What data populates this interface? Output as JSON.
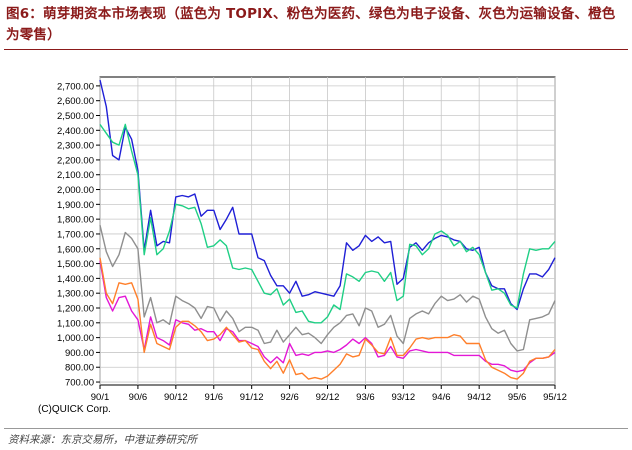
{
  "title": "图6：萌芽期资本市场表现（蓝色为 TOPIX、粉色为医药、绿色为电子设备、灰色为运输设备、橙色为零售）",
  "copyright": "(C)QUICK Corp.",
  "source": "资料来源：东京交易所，中港证券研究所",
  "chart_data": {
    "type": "line",
    "title": "图6：萌芽期资本市场表现（蓝色为 TOPIX、粉色为医药、绿色为电子设备、灰色为运输设备、橙色为零售）",
    "xlabel": "",
    "ylabel": "",
    "x_ticks": [
      "90/1",
      "90/6",
      "90/12",
      "91/6",
      "91/12",
      "92/6",
      "92/12",
      "93/6",
      "93/12",
      "94/6",
      "94/12",
      "95/6",
      "95/12"
    ],
    "x_range": [
      0,
      72
    ],
    "y_ticks": [
      "700.00",
      "800.00",
      "900.00",
      "1,000.00",
      "1,100.00",
      "1,200.00",
      "1,300.00",
      "1,400.00",
      "1,500.00",
      "1,600.00",
      "1,700.00",
      "1,800.00",
      "1,900.00",
      "2,000.00",
      "2,100.00",
      "2,200.00",
      "2,300.00",
      "2,400.00",
      "2,500.00",
      "2,600.00",
      "2,700.00"
    ],
    "ylim": [
      680,
      2760
    ],
    "grid": true,
    "legend": "none",
    "series": [
      {
        "color": "#1f1fd6",
        "x": [
          0,
          1,
          2,
          3,
          4,
          5,
          6,
          7,
          8,
          9,
          10,
          11,
          12,
          13,
          14,
          15,
          16,
          17,
          18,
          19,
          20,
          21,
          22,
          23,
          24,
          25,
          26,
          27,
          28,
          29,
          30,
          31,
          32,
          33,
          34,
          35,
          36,
          37,
          38,
          39,
          40,
          41,
          42,
          43,
          44,
          45,
          46,
          47,
          48,
          49,
          50,
          51,
          52,
          53,
          54,
          55,
          56,
          57,
          58,
          59,
          60,
          61,
          62,
          63,
          64,
          65,
          66,
          67,
          68,
          69,
          70,
          71,
          72
        ],
        "values": [
          2740,
          2560,
          2230,
          2200,
          2420,
          2340,
          2130,
          1590,
          1860,
          1620,
          1650,
          1640,
          1950,
          1960,
          1950,
          1970,
          1820,
          1860,
          1860,
          1730,
          1800,
          1880,
          1700,
          1700,
          1700,
          1540,
          1520,
          1420,
          1350,
          1350,
          1300,
          1380,
          1280,
          1290,
          1310,
          1300,
          1290,
          1280,
          1350,
          1640,
          1590,
          1620,
          1690,
          1650,
          1680,
          1640,
          1650,
          1360,
          1400,
          1610,
          1640,
          1590,
          1640,
          1670,
          1690,
          1680,
          1660,
          1650,
          1600,
          1590,
          1610,
          1440,
          1350,
          1330,
          1330,
          1230,
          1190,
          1330,
          1430,
          1430,
          1410,
          1460,
          1540
        ]
      },
      {
        "color": "#e317d6",
        "x": [
          0,
          1,
          2,
          3,
          4,
          5,
          6,
          7,
          8,
          9,
          10,
          11,
          12,
          13,
          14,
          15,
          16,
          17,
          18,
          19,
          20,
          21,
          22,
          23,
          24,
          25,
          26,
          27,
          28,
          29,
          30,
          31,
          32,
          33,
          34,
          35,
          36,
          37,
          38,
          39,
          40,
          41,
          42,
          43,
          44,
          45,
          46,
          47,
          48,
          49,
          50,
          51,
          52,
          53,
          54,
          55,
          56,
          57,
          58,
          59,
          60,
          61,
          62,
          63,
          64,
          65,
          66,
          67,
          68,
          69,
          70,
          71,
          72
        ],
        "values": [
          1520,
          1270,
          1180,
          1270,
          1280,
          1180,
          1120,
          920,
          1140,
          1000,
          980,
          950,
          1120,
          1100,
          1090,
          1050,
          1060,
          1040,
          1040,
          980,
          1060,
          1040,
          980,
          980,
          960,
          940,
          870,
          830,
          870,
          830,
          960,
          880,
          890,
          880,
          900,
          900,
          910,
          900,
          920,
          950,
          990,
          960,
          1000,
          960,
          870,
          880,
          940,
          870,
          860,
          910,
          920,
          910,
          900,
          900,
          900,
          900,
          880,
          880,
          880,
          880,
          880,
          840,
          820,
          820,
          810,
          780,
          770,
          780,
          830,
          860,
          860,
          870,
          900
        ]
      },
      {
        "color": "#1fcf85",
        "x": [
          0,
          1,
          2,
          3,
          4,
          5,
          6,
          7,
          8,
          9,
          10,
          11,
          12,
          13,
          14,
          15,
          16,
          17,
          18,
          19,
          20,
          21,
          22,
          23,
          24,
          25,
          26,
          27,
          28,
          29,
          30,
          31,
          32,
          33,
          34,
          35,
          36,
          37,
          38,
          39,
          40,
          41,
          42,
          43,
          44,
          45,
          46,
          47,
          48,
          49,
          50,
          51,
          52,
          53,
          54,
          55,
          56,
          57,
          58,
          59,
          60,
          61,
          62,
          63,
          64,
          65,
          66,
          67,
          68,
          69,
          70,
          71,
          72
        ],
        "values": [
          2440,
          2380,
          2320,
          2300,
          2440,
          2260,
          2100,
          1560,
          1810,
          1560,
          1600,
          1720,
          1900,
          1890,
          1870,
          1880,
          1770,
          1610,
          1620,
          1660,
          1620,
          1470,
          1460,
          1470,
          1460,
          1380,
          1300,
          1290,
          1330,
          1220,
          1260,
          1170,
          1180,
          1110,
          1100,
          1100,
          1140,
          1220,
          1190,
          1430,
          1410,
          1380,
          1440,
          1450,
          1440,
          1380,
          1440,
          1250,
          1280,
          1630,
          1620,
          1560,
          1600,
          1700,
          1720,
          1690,
          1620,
          1650,
          1580,
          1610,
          1560,
          1440,
          1320,
          1330,
          1300,
          1220,
          1200,
          1430,
          1600,
          1590,
          1600,
          1600,
          1650
        ]
      },
      {
        "color": "#8f8f8f",
        "x": [
          0,
          1,
          2,
          3,
          4,
          5,
          6,
          7,
          8,
          9,
          10,
          11,
          12,
          13,
          14,
          15,
          16,
          17,
          18,
          19,
          20,
          21,
          22,
          23,
          24,
          25,
          26,
          27,
          28,
          29,
          30,
          31,
          32,
          33,
          34,
          35,
          36,
          37,
          38,
          39,
          40,
          41,
          42,
          43,
          44,
          45,
          46,
          47,
          48,
          49,
          50,
          51,
          52,
          53,
          54,
          55,
          56,
          57,
          58,
          59,
          60,
          61,
          62,
          63,
          64,
          65,
          66,
          67,
          68,
          69,
          70,
          71,
          72
        ],
        "values": [
          1760,
          1580,
          1480,
          1560,
          1710,
          1670,
          1600,
          1140,
          1270,
          1100,
          1120,
          1090,
          1280,
          1250,
          1230,
          1200,
          1130,
          1210,
          1200,
          1110,
          1180,
          1130,
          1040,
          1070,
          1070,
          1050,
          960,
          970,
          1050,
          970,
          1020,
          1070,
          1020,
          1030,
          1000,
          960,
          1020,
          1070,
          1100,
          1150,
          1160,
          1080,
          1200,
          1180,
          1070,
          1090,
          1150,
          1010,
          960,
          1130,
          1160,
          1180,
          1160,
          1230,
          1280,
          1250,
          1260,
          1290,
          1240,
          1280,
          1260,
          1140,
          1060,
          1030,
          1050,
          960,
          910,
          920,
          1120,
          1130,
          1140,
          1160,
          1250
        ]
      },
      {
        "color": "#ff7f2a",
        "x": [
          0,
          1,
          2,
          3,
          4,
          5,
          6,
          7,
          8,
          9,
          10,
          11,
          12,
          13,
          14,
          15,
          16,
          17,
          18,
          19,
          20,
          21,
          22,
          23,
          24,
          25,
          26,
          27,
          28,
          29,
          30,
          31,
          32,
          33,
          34,
          35,
          36,
          37,
          38,
          39,
          40,
          41,
          42,
          43,
          44,
          45,
          46,
          47,
          48,
          49,
          50,
          51,
          52,
          53,
          54,
          55,
          56,
          57,
          58,
          59,
          60,
          61,
          62,
          63,
          64,
          65,
          66,
          67,
          68,
          69,
          70,
          71,
          72
        ],
        "values": [
          1540,
          1300,
          1230,
          1370,
          1360,
          1370,
          1260,
          900,
          1090,
          960,
          940,
          920,
          1070,
          1110,
          1110,
          1080,
          1040,
          980,
          990,
          1020,
          1070,
          1020,
          970,
          980,
          930,
          920,
          840,
          790,
          840,
          760,
          850,
          750,
          760,
          720,
          730,
          720,
          740,
          780,
          820,
          890,
          870,
          880,
          990,
          950,
          900,
          890,
          1000,
          880,
          880,
          930,
          990,
          1000,
          990,
          1000,
          1000,
          1000,
          1020,
          1010,
          960,
          960,
          960,
          850,
          800,
          780,
          760,
          730,
          720,
          760,
          840,
          860,
          860,
          870,
          920
        ]
      }
    ]
  }
}
